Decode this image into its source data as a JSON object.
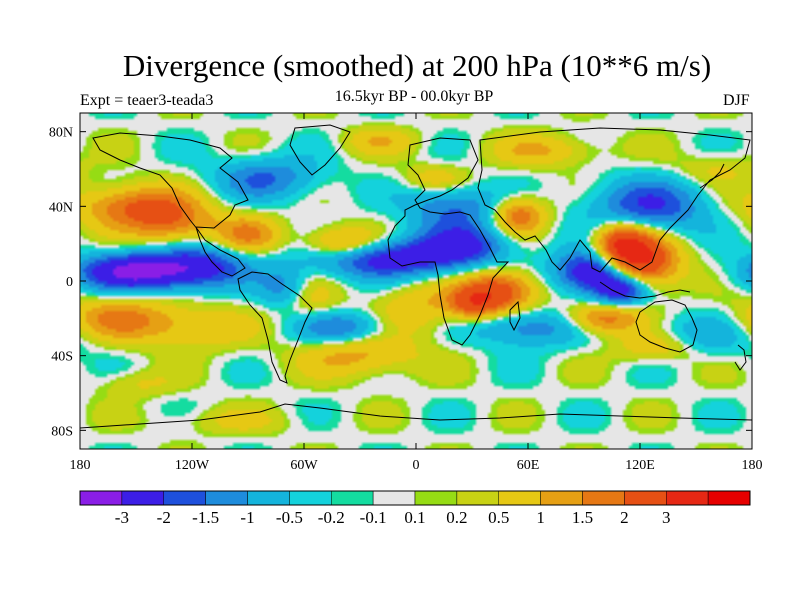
{
  "header": {
    "title": "Divergence (smoothed) at 200 hPa (10**6 m/s)",
    "left_label": "Expt = teaer3-teada3",
    "center_label": "16.5kyr BP - 00.0kyr BP",
    "right_label": "DJF"
  },
  "map": {
    "projection": "cylindrical-equidistant",
    "lon_range": [
      -180,
      180
    ],
    "lat_range": [
      -90,
      90
    ],
    "lat_ticks": [
      {
        "value": 80,
        "label": "80N"
      },
      {
        "value": 40,
        "label": "40N"
      },
      {
        "value": 0,
        "label": "0"
      },
      {
        "value": -40,
        "label": "40S"
      },
      {
        "value": -80,
        "label": "80S"
      }
    ],
    "lon_ticks": [
      {
        "value": -180,
        "label": "180"
      },
      {
        "value": -120,
        "label": "120W"
      },
      {
        "value": -60,
        "label": "60W"
      },
      {
        "value": 0,
        "label": "0"
      },
      {
        "value": 60,
        "label": "60E"
      },
      {
        "value": 120,
        "label": "120E"
      },
      {
        "value": 180,
        "label": "180"
      }
    ]
  },
  "colorbar": {
    "colors": [
      "#8a1ee6",
      "#3c1ee6",
      "#1e50dc",
      "#1e8cdc",
      "#14b4dc",
      "#14d2dc",
      "#14dca0",
      "#e6e6e6",
      "#96dc14",
      "#c8d214",
      "#e6c814",
      "#e6a014",
      "#e67814",
      "#e65014",
      "#e62814",
      "#e60000"
    ],
    "labels": [
      "-3",
      "-2",
      "-1.5",
      "-1",
      "-0.5",
      "-0.2",
      "-0.1",
      "0.1",
      "0.2",
      "0.5",
      "1",
      "1.5",
      "2",
      "3"
    ]
  },
  "field_features": [
    {
      "lon": -150,
      "lat": 5,
      "v": -3.2,
      "sx": 22,
      "sy": 7
    },
    {
      "lon": -115,
      "lat": 8,
      "v": -2.0,
      "sx": 18,
      "sy": 8
    },
    {
      "lon": -15,
      "lat": 12,
      "v": -2.5,
      "sx": 28,
      "sy": 7
    },
    {
      "lon": 25,
      "lat": 20,
      "v": -2.0,
      "sx": 18,
      "sy": 8
    },
    {
      "lon": 95,
      "lat": 5,
      "v": -3.2,
      "sx": 14,
      "sy": 8
    },
    {
      "lon": 110,
      "lat": -5,
      "v": -2.5,
      "sx": 10,
      "sy": 6
    },
    {
      "lon": 125,
      "lat": 40,
      "v": -2.0,
      "sx": 22,
      "sy": 10
    },
    {
      "lon": 20,
      "lat": 40,
      "v": -1.5,
      "sx": 18,
      "sy": 8
    },
    {
      "lon": -80,
      "lat": 55,
      "v": -1.5,
      "sx": 20,
      "sy": 8
    },
    {
      "lon": -70,
      "lat": -5,
      "v": -1.5,
      "sx": 10,
      "sy": 8
    },
    {
      "lon": -40,
      "lat": -25,
      "v": -1.5,
      "sx": 18,
      "sy": 6
    },
    {
      "lon": 60,
      "lat": -25,
      "v": -1.5,
      "sx": 20,
      "sy": 7
    },
    {
      "lon": 150,
      "lat": -30,
      "v": -1.0,
      "sx": 22,
      "sy": 8
    },
    {
      "lon": -150,
      "lat": 40,
      "v": 2.0,
      "sx": 22,
      "sy": 8
    },
    {
      "lon": -130,
      "lat": 30,
      "v": 1.5,
      "sx": 16,
      "sy": 8
    },
    {
      "lon": -90,
      "lat": 25,
      "v": 1.5,
      "sx": 12,
      "sy": 7
    },
    {
      "lon": -40,
      "lat": 20,
      "v": 1.8,
      "sx": 14,
      "sy": 6
    },
    {
      "lon": 55,
      "lat": 35,
      "v": 2.0,
      "sx": 10,
      "sy": 7
    },
    {
      "lon": 45,
      "lat": -5,
      "v": 2.5,
      "sx": 14,
      "sy": 8
    },
    {
      "lon": 30,
      "lat": -12,
      "v": 2.0,
      "sx": 10,
      "sy": 6
    },
    {
      "lon": 120,
      "lat": 10,
      "v": 3.2,
      "sx": 14,
      "sy": 10
    },
    {
      "lon": 110,
      "lat": 20,
      "v": 2.5,
      "sx": 10,
      "sy": 8
    },
    {
      "lon": 100,
      "lat": -20,
      "v": 2.0,
      "sx": 14,
      "sy": 6
    },
    {
      "lon": -160,
      "lat": -20,
      "v": 1.5,
      "sx": 20,
      "sy": 8
    },
    {
      "lon": -120,
      "lat": -25,
      "v": 1.0,
      "sx": 22,
      "sy": 8
    },
    {
      "lon": -60,
      "lat": -10,
      "v": 1.0,
      "sx": 12,
      "sy": 8
    },
    {
      "lon": -30,
      "lat": -40,
      "v": 1.2,
      "sx": 22,
      "sy": 8
    },
    {
      "lon": 0,
      "lat": -15,
      "v": 1.0,
      "sx": 14,
      "sy": 10
    },
    {
      "lon": 130,
      "lat": -35,
      "v": 1.2,
      "sx": 16,
      "sy": 6
    },
    {
      "lon": 70,
      "lat": 70,
      "v": 1.0,
      "sx": 20,
      "sy": 6
    },
    {
      "lon": -20,
      "lat": 75,
      "v": 0.8,
      "sx": 14,
      "sy": 5
    },
    {
      "lon": -100,
      "lat": -75,
      "v": 0.5,
      "sx": 25,
      "sy": 5
    },
    {
      "lon": -150,
      "lat": -55,
      "v": 0.6,
      "sx": 14,
      "sy": 5
    },
    {
      "lon": 10,
      "lat": 55,
      "v": 0.8,
      "sx": 12,
      "sy": 5
    },
    {
      "lon": 160,
      "lat": 60,
      "v": 0.6,
      "sx": 16,
      "sy": 6
    }
  ]
}
